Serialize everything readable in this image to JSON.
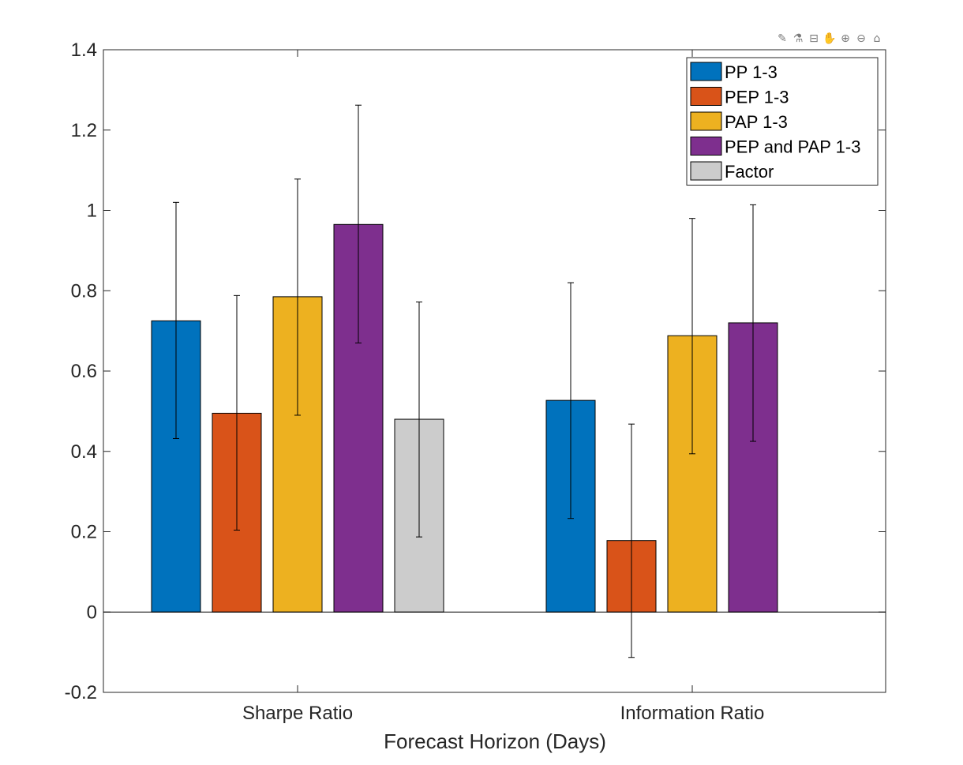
{
  "toolbar": {
    "icons": [
      "brush-icon",
      "datatips-icon",
      "export-icon",
      "pan-icon",
      "zoom-in-icon",
      "zoom-out-icon",
      "home-icon"
    ],
    "glyphs": [
      "✎",
      "⚗",
      "⊟",
      "✋",
      "⊕",
      "⊖",
      "⌂"
    ]
  },
  "chart_data": {
    "type": "bar",
    "title": "",
    "xlabel": "Forecast Horizon (Days)",
    "ylabel": "",
    "categories": [
      "Sharpe Ratio",
      "Information Ratio"
    ],
    "ylim": [
      -0.2,
      1.4
    ],
    "yticks": [
      -0.2,
      0,
      0.2,
      0.4,
      0.6,
      0.8,
      1,
      1.2,
      1.4
    ],
    "ytick_labels": [
      "-0.2",
      "0",
      "0.2",
      "0.4",
      "0.6",
      "0.8",
      "1",
      "1.2",
      "1.4"
    ],
    "grid": false,
    "legend_position": "top-right",
    "series": [
      {
        "name": "PP 1-3",
        "color": "#0072BD",
        "values": [
          0.725,
          0.527
        ],
        "err_low": [
          0.432,
          0.233
        ],
        "err_high": [
          1.02,
          0.82
        ]
      },
      {
        "name": "PEP 1-3",
        "color": "#D95319",
        "values": [
          0.495,
          0.178
        ],
        "err_low": [
          0.204,
          -0.113
        ],
        "err_high": [
          0.788,
          0.468
        ]
      },
      {
        "name": "PAP 1-3",
        "color": "#EDB120",
        "values": [
          0.785,
          0.688
        ],
        "err_low": [
          0.49,
          0.394
        ],
        "err_high": [
          1.078,
          0.98
        ]
      },
      {
        "name": "PEP and PAP 1-3",
        "color": "#7E2F8E",
        "values": [
          0.965,
          0.72
        ],
        "err_low": [
          0.67,
          0.425
        ],
        "err_high": [
          1.262,
          1.014
        ]
      },
      {
        "name": "Factor",
        "color": "#CCCCCC",
        "values": [
          0.48,
          0.0
        ],
        "err_low": [
          0.187,
          null
        ],
        "err_high": [
          0.772,
          null
        ]
      }
    ]
  }
}
